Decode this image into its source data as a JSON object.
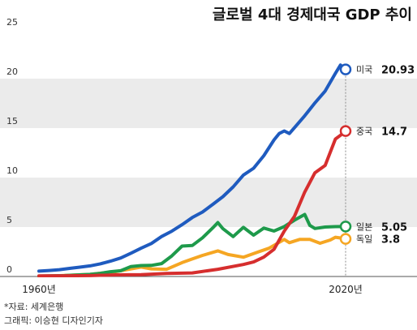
{
  "chart_data": {
    "type": "line",
    "title": "글로벌 4대 경제대국 GDP 추이",
    "ylim": [
      0,
      25
    ],
    "y_ticks": [
      "0",
      "5",
      "10",
      "15",
      "20",
      "25"
    ],
    "x_tick_labels": [
      "1960년",
      "2020년"
    ],
    "x_range": [
      1960,
      2020
    ],
    "grid": "alternating horizontal bands",
    "series": [
      {
        "name": "미국",
        "end_label": "20.93",
        "color": "#1f5bbf",
        "x": [
          1960,
          1962,
          1964,
          1966,
          1968,
          1970,
          1972,
          1974,
          1976,
          1978,
          1980,
          1982,
          1984,
          1986,
          1988,
          1990,
          1992,
          1994,
          1996,
          1998,
          2000,
          2002,
          2004,
          2006,
          2007,
          2008,
          2009,
          2010,
          2012,
          2014,
          2016,
          2018,
          2019,
          2020
        ],
        "values": [
          0.54,
          0.61,
          0.69,
          0.82,
          0.94,
          1.07,
          1.28,
          1.55,
          1.87,
          2.35,
          2.86,
          3.34,
          4.04,
          4.58,
          5.24,
          5.96,
          6.52,
          7.29,
          8.07,
          9.06,
          10.25,
          10.94,
          12.21,
          13.81,
          14.45,
          14.71,
          14.45,
          15.05,
          16.25,
          17.55,
          18.75,
          20.53,
          21.38,
          20.93
        ]
      },
      {
        "name": "중국",
        "end_label": "14.7",
        "color": "#d62e2e",
        "x": [
          1960,
          1965,
          1970,
          1975,
          1980,
          1985,
          1990,
          1995,
          2000,
          2002,
          2004,
          2006,
          2008,
          2010,
          2012,
          2014,
          2016,
          2018,
          2019,
          2020
        ],
        "values": [
          0.06,
          0.07,
          0.09,
          0.16,
          0.19,
          0.31,
          0.36,
          0.73,
          1.21,
          1.47,
          1.96,
          2.75,
          4.59,
          6.09,
          8.53,
          10.48,
          11.23,
          13.89,
          14.28,
          14.7
        ]
      },
      {
        "name": "일본",
        "end_label": "5.05",
        "color": "#1e9a4b",
        "x": [
          1960,
          1965,
          1970,
          1972,
          1974,
          1976,
          1978,
          1980,
          1982,
          1984,
          1986,
          1988,
          1990,
          1992,
          1994,
          1995,
          1996,
          1998,
          2000,
          2002,
          2004,
          2006,
          2008,
          2010,
          2012,
          2013,
          2014,
          2016,
          2018,
          2020
        ],
        "values": [
          0.04,
          0.09,
          0.21,
          0.32,
          0.48,
          0.58,
          1.01,
          1.11,
          1.12,
          1.3,
          2.08,
          3.07,
          3.13,
          3.91,
          4.91,
          5.45,
          4.83,
          4.03,
          4.97,
          4.18,
          4.89,
          4.6,
          5.04,
          5.7,
          6.27,
          5.16,
          4.85,
          5.0,
          5.04,
          5.05
        ]
      },
      {
        "name": "독일",
        "end_label": "3.8",
        "color": "#f5a623",
        "x": [
          1960,
          1965,
          1970,
          1975,
          1980,
          1982,
          1985,
          1988,
          1990,
          1992,
          1995,
          1997,
          2000,
          2003,
          2005,
          2008,
          2009,
          2011,
          2013,
          2015,
          2017,
          2018,
          2019,
          2020
        ],
        "values": [
          0.0,
          0.1,
          0.21,
          0.49,
          0.95,
          0.77,
          0.73,
          1.4,
          1.77,
          2.13,
          2.59,
          2.22,
          1.95,
          2.5,
          2.85,
          3.75,
          3.42,
          3.75,
          3.75,
          3.36,
          3.69,
          3.97,
          3.89,
          3.8
        ]
      }
    ]
  },
  "source": {
    "data_source": "*자료: 세계은행",
    "credit": "그래픽: 이승현 디자인기자"
  }
}
